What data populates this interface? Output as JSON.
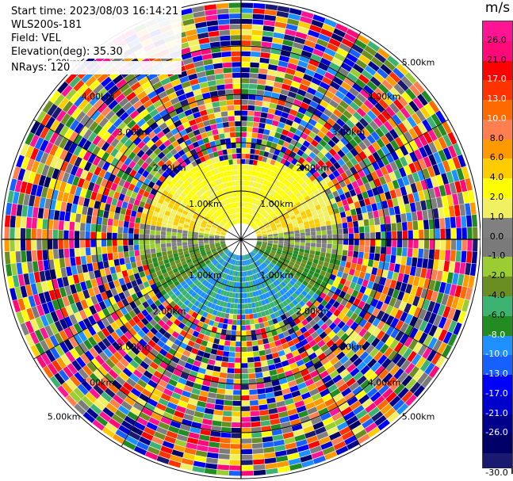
{
  "info": {
    "start_time": "Start time: 2023/08/03 16:14:21",
    "instrument": "WLS200s-181",
    "field": "Field: VEL",
    "elevation": "Elevation(deg): 35.30",
    "nrays": "NRays: 120"
  },
  "colorbar": {
    "unit": "m/s",
    "labels": [
      "26.0",
      "21.0",
      "17.0",
      "13.0",
      "10.0",
      "8.0",
      "6.0",
      "4.0",
      "2.0",
      "1.0",
      "0.0",
      "-1.0",
      "-2.0",
      "-4.0",
      "-6.0",
      "-8.0",
      "-10.0",
      "-13.0",
      "-17.0",
      "-21.0",
      "-26.0",
      "-30.0"
    ],
    "colors": [
      "#ff1493",
      "#ff0a78",
      "#ff0000",
      "#ff3300",
      "#ff6a00",
      "#ff7f50",
      "#ff9900",
      "#ffcc00",
      "#ffff00",
      "#f0f060",
      "#808080",
      "#7a7a7a",
      "#9acd32",
      "#6b8e23",
      "#3cb371",
      "#228b22",
      "#1e90ff",
      "#1560ff",
      "#0000ff",
      "#0000cd",
      "#00008b",
      "#000066",
      "#191970"
    ]
  },
  "chart_data": {
    "type": "ppi",
    "field": "VEL",
    "units": "m/s",
    "rays": 120,
    "range_ring_labels": [
      "1.00km",
      "2.00km",
      "3.00km",
      "4.00km",
      "5.00km"
    ]
  }
}
